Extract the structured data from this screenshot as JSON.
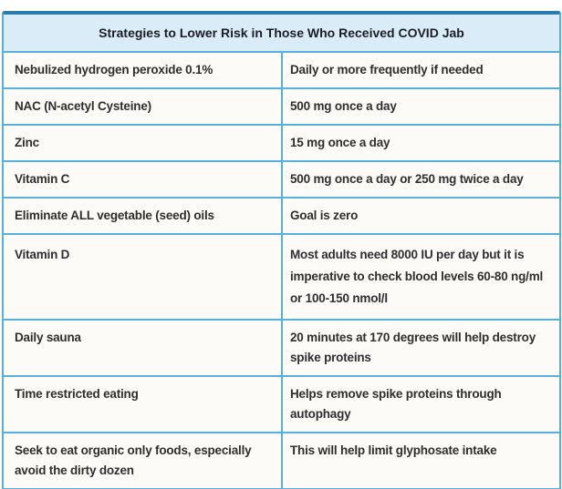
{
  "table": {
    "title": "Strategies to Lower Risk in Those Who Received COVID Jab",
    "rows": [
      {
        "strategy": "Nebulized hydrogen peroxide 0.1%",
        "detail": "Daily or more frequently if needed"
      },
      {
        "strategy": "NAC (N-acetyl Cysteine)",
        "detail": "500 mg once a day"
      },
      {
        "strategy": "Zinc",
        "detail": "15 mg once a day"
      },
      {
        "strategy": "Vitamin C",
        "detail": "500 mg once a day or 250 mg twice a day"
      },
      {
        "strategy": "Eliminate ALL vegetable (seed) oils",
        "detail": "Goal is zero"
      },
      {
        "strategy": "Vitamin D",
        "detail": "Most adults need 8000 IU per day but it is imperative to check blood levels 60-80 ng/ml or 100-150 nmol/l"
      },
      {
        "strategy": "Daily sauna",
        "detail": "20 minutes at 170 degrees will help destroy spike proteins"
      },
      {
        "strategy": "Time restricted eating",
        "detail": "Helps remove spike proteins through autophagy"
      },
      {
        "strategy": "Seek to eat organic only foods, especially avoid the dirty dozen",
        "detail": "This will help limit glyphosate intake"
      }
    ]
  },
  "colors": {
    "accent_border": "#55b0dd",
    "top_border": "#2a7cb0",
    "header_bg": "#d9ecf8",
    "row_bg": "#fcfbf8"
  }
}
